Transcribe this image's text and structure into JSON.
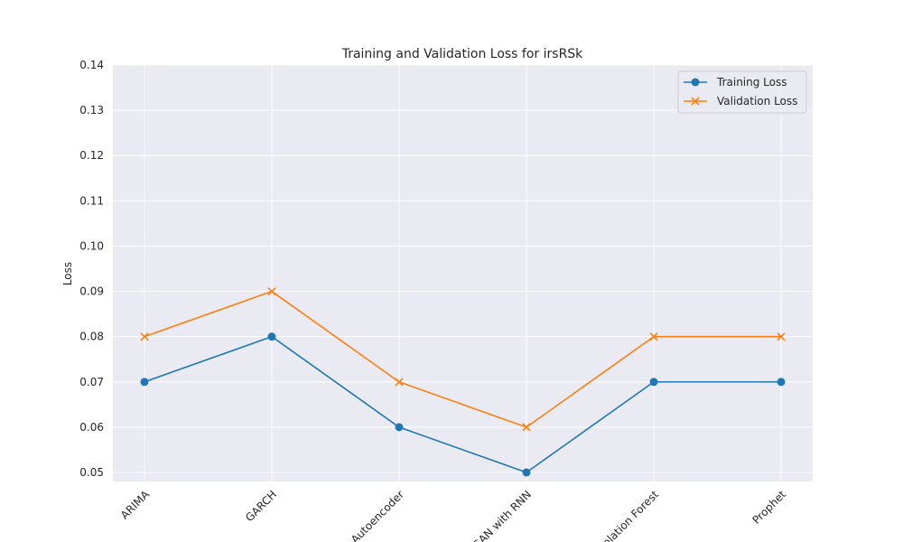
{
  "chart_data": {
    "type": "line",
    "title": "Training and Validation Loss for irsRSk",
    "xlabel": "",
    "ylabel": "Loss",
    "categories": [
      "ARIMA",
      "GARCH",
      "Autoencoder",
      "GAN with RNN",
      "Isolation Forest",
      "Prophet"
    ],
    "ylim": [
      0.048,
      0.14
    ],
    "yticks": [
      0.05,
      0.06,
      0.07,
      0.08,
      0.09,
      0.1,
      0.11,
      0.12,
      0.13,
      0.14
    ],
    "ytick_labels": [
      "0.05",
      "0.06",
      "0.07",
      "0.08",
      "0.09",
      "0.10",
      "0.11",
      "0.12",
      "0.13",
      "0.14"
    ],
    "grid": true,
    "legend_position": "top-right",
    "series": [
      {
        "name": "Training Loss",
        "marker": "circle",
        "color": "#1f77b4",
        "values": [
          0.07,
          0.08,
          0.06,
          0.05,
          0.07,
          0.07
        ]
      },
      {
        "name": "Validation Loss",
        "marker": "x",
        "color": "#ff7f0e",
        "values": [
          0.08,
          0.09,
          0.07,
          0.06,
          0.08,
          0.08
        ]
      }
    ]
  }
}
